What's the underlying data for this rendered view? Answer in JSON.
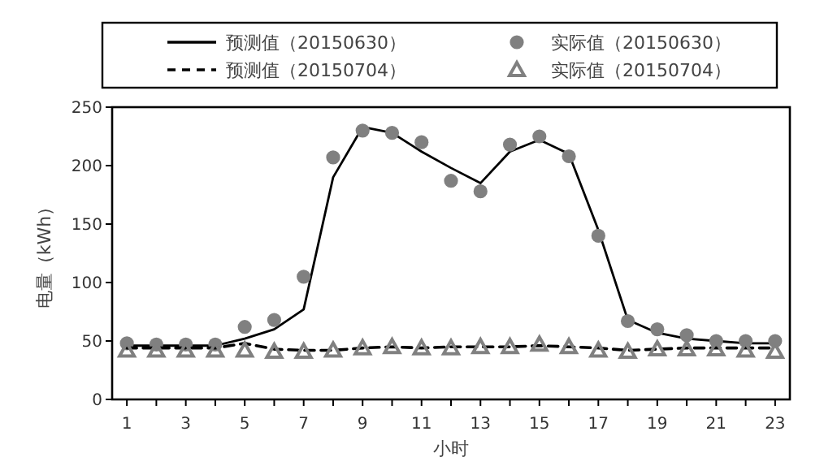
{
  "chart_data": {
    "type": "line",
    "xlabel": "小时",
    "ylabel": "电量（kWh）",
    "x": [
      1,
      2,
      3,
      4,
      5,
      6,
      7,
      8,
      9,
      10,
      11,
      12,
      13,
      14,
      15,
      16,
      17,
      18,
      19,
      20,
      21,
      22,
      23
    ],
    "series": [
      {
        "name": "预测值（20150630）",
        "type": "line",
        "color": "#000000",
        "line_style": "solid",
        "marker": "none",
        "values": [
          46,
          46,
          46,
          46,
          52,
          60,
          77,
          190,
          233,
          228,
          212,
          198,
          185,
          212,
          222,
          210,
          145,
          68,
          57,
          52,
          50,
          48,
          48
        ]
      },
      {
        "name": "实际值（20150630）",
        "type": "scatter",
        "color": "#808080",
        "marker": "circle",
        "values": [
          48,
          47,
          47,
          47,
          62,
          68,
          105,
          207,
          230,
          228,
          220,
          187,
          178,
          218,
          225,
          208,
          140,
          67,
          60,
          55,
          50,
          50,
          50
        ]
      },
      {
        "name": "预测值（20150704）",
        "type": "line",
        "color": "#000000",
        "line_style": "dashed",
        "marker": "none",
        "values": [
          44,
          44,
          44,
          44,
          48,
          43,
          42,
          42,
          44,
          45,
          44,
          45,
          45,
          45,
          46,
          45,
          44,
          42,
          43,
          44,
          44,
          44,
          44
        ]
      },
      {
        "name": "实际值（20150704）",
        "type": "scatter",
        "color": "#808080",
        "marker": "triangle",
        "values": [
          42,
          42,
          42,
          42,
          42,
          41,
          41,
          42,
          44,
          45,
          44,
          44,
          45,
          45,
          47,
          45,
          42,
          41,
          43,
          43,
          43,
          42,
          41
        ]
      }
    ],
    "xlim": [
      0.5,
      23.5
    ],
    "xticks": [
      1,
      {
        "value": 2,
        "label": null
      },
      3,
      {
        "value": 4,
        "label": null
      },
      5,
      {
        "value": 6,
        "label": null
      },
      7,
      {
        "value": 8,
        "label": null
      },
      9,
      {
        "value": 10,
        "label": null
      },
      11,
      {
        "value": 12,
        "label": null
      },
      13,
      {
        "value": 14,
        "label": null
      },
      15,
      {
        "value": 16,
        "label": null
      },
      17,
      {
        "value": 18,
        "label": null
      },
      19,
      {
        "value": 20,
        "label": null
      },
      21,
      {
        "value": 22,
        "label": null
      },
      23
    ],
    "ylim": [
      0,
      250
    ],
    "yticks": [
      0,
      50,
      100,
      150,
      200,
      250
    ],
    "grid": false,
    "legend": "top"
  }
}
